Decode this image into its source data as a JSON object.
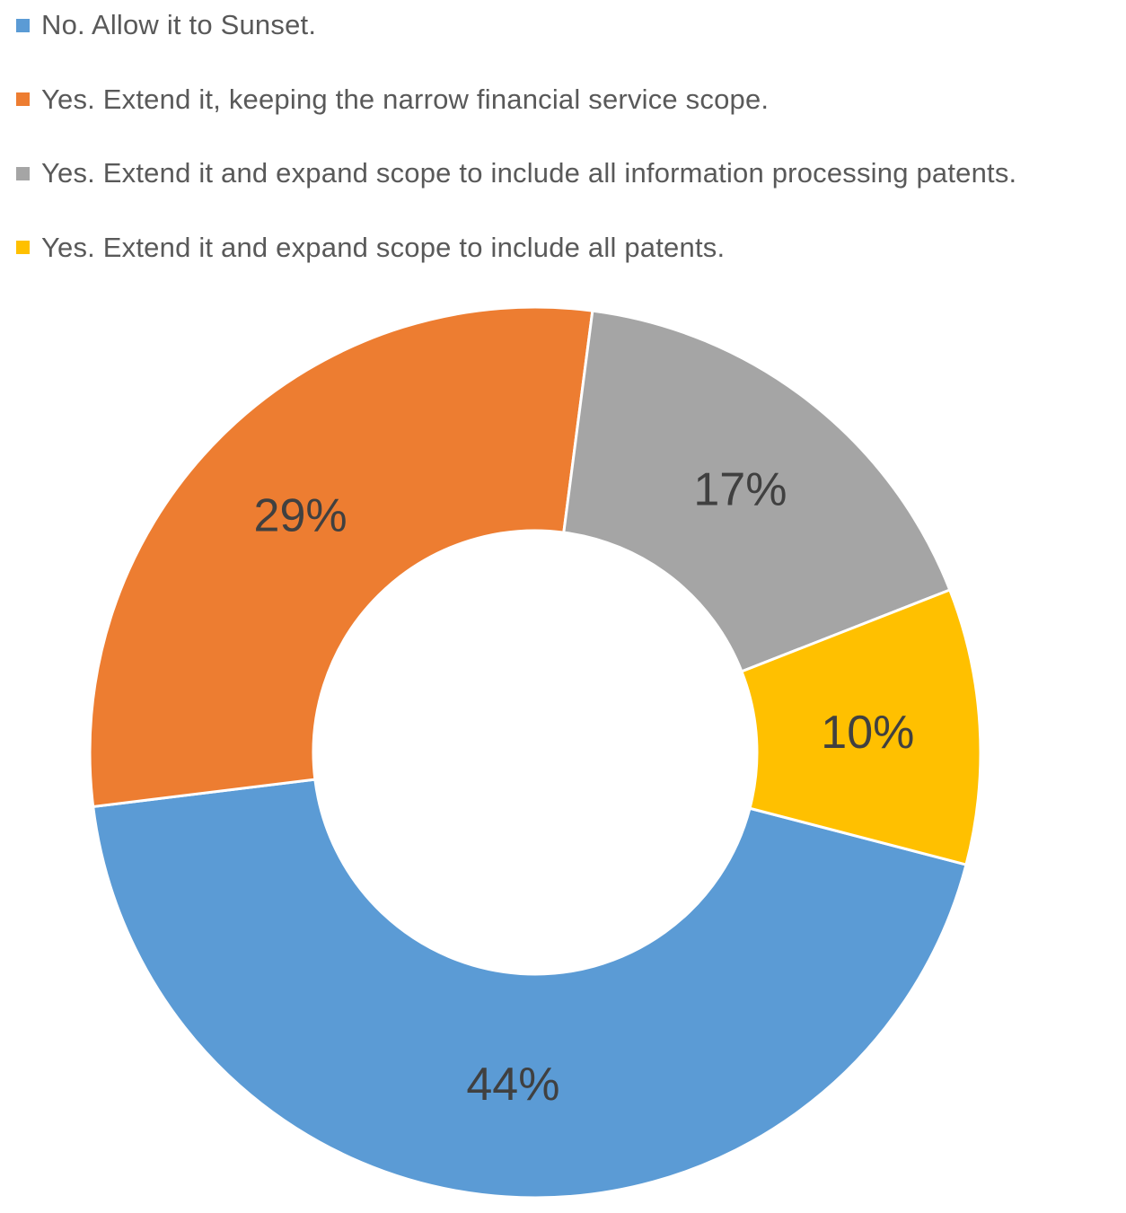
{
  "chart_data": {
    "type": "pie",
    "variant": "donut",
    "title": "",
    "legend_position": "top-left",
    "series": [
      {
        "name": "No. Allow it to Sunset.",
        "value": 44,
        "label": "44%",
        "color": "#5B9BD5"
      },
      {
        "name": "Yes. Extend it, keeping the narrow financial service scope.",
        "value": 29,
        "label": "29%",
        "color": "#ED7D31"
      },
      {
        "name": "Yes. Extend it and expand scope to include all information processing patents.",
        "value": 17,
        "label": "17%",
        "color": "#A5A5A5"
      },
      {
        "name": "Yes. Extend it and expand scope to include all patents.",
        "value": 10,
        "label": "10%",
        "color": "#FFC000"
      }
    ]
  }
}
